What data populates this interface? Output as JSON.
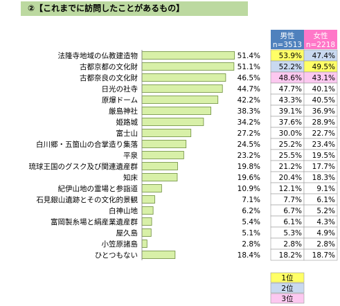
{
  "title": "②【これまでに訪問したことがあるもの】",
  "colors": {
    "title_bg": "#bcd9a0",
    "bar_fill": "#d8f0a8",
    "bar_stroke": "#6b8c3a",
    "male_header": "#4f81bd",
    "female_header": "#ff77c8",
    "rank1": "#ffff66",
    "rank2": "#c9d9f0",
    "rank3": "#fcc8f0"
  },
  "table": {
    "male_label": "男性",
    "male_n": "n=3513",
    "female_label": "女性",
    "female_n": "n=2218"
  },
  "legend": {
    "rank1": "1位",
    "rank2": "2位",
    "rank3": "3位"
  },
  "chart_data": {
    "type": "bar",
    "orientation": "horizontal",
    "title": "②【これまでに訪問したことがあるもの】",
    "categories": [
      "法隆寺地域の仏教建造物",
      "古都京都の文化財",
      "古都奈良の文化財",
      "日光の社寺",
      "原爆ドーム",
      "厳島神社",
      "姫路城",
      "富士山",
      "白川郷・五箇山の合掌造り集落",
      "平泉",
      "琉球王国のグスク及び関連遺産群",
      "知床",
      "紀伊山地の霊場と参詣道",
      "石見銀山遺跡とその文化的景観",
      "白神山地",
      "富岡製糸場と絹産業遺産群",
      "屋久島",
      "小笠原諸島",
      "ひとつもない"
    ],
    "values": [
      51.4,
      51.1,
      46.5,
      44.7,
      42.2,
      38.3,
      34.2,
      27.2,
      24.5,
      23.2,
      19.8,
      19.6,
      10.9,
      7.1,
      6.2,
      5.4,
      5.1,
      2.8,
      18.4
    ],
    "value_labels": [
      "51.4%",
      "51.1%",
      "46.5%",
      "44.7%",
      "42.2%",
      "38.3%",
      "34.2%",
      "27.2%",
      "24.5%",
      "23.2%",
      "19.8%",
      "19.6%",
      "10.9%",
      "7.1%",
      "6.2%",
      "5.4%",
      "5.1%",
      "2.8%",
      "18.4%"
    ],
    "xlim": [
      0,
      100
    ],
    "grid": false,
    "side_table": {
      "male": [
        "53.9%",
        "52.2%",
        "48.6%",
        "47.7%",
        "43.3%",
        "39.1%",
        "37.6%",
        "30.0%",
        "25.2%",
        "25.5%",
        "21.2%",
        "20.4%",
        "12.1%",
        "7.7%",
        "6.7%",
        "6.1%",
        "5.3%",
        "2.8%",
        "18.2%"
      ],
      "female": [
        "47.4%",
        "49.5%",
        "43.1%",
        "40.1%",
        "40.5%",
        "36.9%",
        "28.9%",
        "22.7%",
        "23.4%",
        "19.5%",
        "17.7%",
        "18.3%",
        "9.1%",
        "6.1%",
        "5.2%",
        "4.3%",
        "4.9%",
        "2.8%",
        "18.7%"
      ],
      "male_rank": [
        1,
        2,
        3,
        0,
        0,
        0,
        0,
        0,
        0,
        0,
        0,
        0,
        0,
        0,
        0,
        0,
        0,
        0,
        0
      ],
      "female_rank": [
        2,
        1,
        3,
        0,
        0,
        0,
        0,
        0,
        0,
        0,
        0,
        0,
        0,
        0,
        0,
        0,
        0,
        0,
        0
      ]
    }
  }
}
